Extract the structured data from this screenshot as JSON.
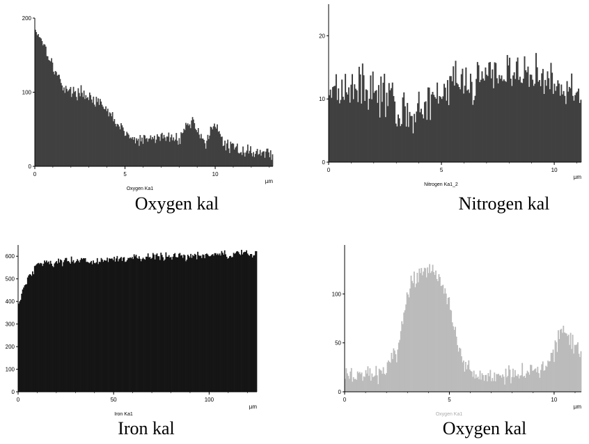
{
  "chart_data": [
    {
      "type": "bar",
      "series_label": "Oxygen Ka1",
      "caption": "Oxygen kal",
      "x_unit": "µm",
      "xlim": [
        0,
        13.2
      ],
      "ylim": [
        0,
        200
      ],
      "x_ticks": [
        0,
        5,
        10
      ],
      "y_ticks": [
        0,
        100,
        200
      ],
      "bar_color": "#404040",
      "label_color": "#000000",
      "profile": [
        [
          0,
          185
        ],
        [
          0.3,
          175
        ],
        [
          0.6,
          160
        ],
        [
          1.0,
          135
        ],
        [
          1.5,
          110
        ],
        [
          2.0,
          100
        ],
        [
          2.5,
          100
        ],
        [
          3.0,
          95
        ],
        [
          3.5,
          85
        ],
        [
          4.0,
          75
        ],
        [
          4.5,
          60
        ],
        [
          5.0,
          45
        ],
        [
          5.5,
          35
        ],
        [
          6.0,
          35
        ],
        [
          6.5,
          38
        ],
        [
          7.0,
          40
        ],
        [
          7.5,
          38
        ],
        [
          8.0,
          38
        ],
        [
          8.5,
          58
        ],
        [
          8.8,
          60
        ],
        [
          9.2,
          42
        ],
        [
          9.5,
          30
        ],
        [
          9.8,
          50
        ],
        [
          10.1,
          52
        ],
        [
          10.5,
          30
        ],
        [
          11.0,
          25
        ],
        [
          11.5,
          22
        ],
        [
          12.0,
          20
        ],
        [
          12.5,
          18
        ],
        [
          13.2,
          18
        ]
      ],
      "noise": 12,
      "bins": 250
    },
    {
      "type": "bar",
      "series_label": "Nitrogen Ka1_2",
      "caption": "Nitrogen kal",
      "x_unit": "µm",
      "xlim": [
        0,
        11.2
      ],
      "ylim": [
        0,
        25
      ],
      "x_ticks": [
        0,
        5,
        10
      ],
      "y_ticks": [
        0,
        10,
        20
      ],
      "bar_color": "#404040",
      "label_color": "#000000",
      "profile": [
        [
          0,
          12
        ],
        [
          1.0,
          12
        ],
        [
          2.0,
          12
        ],
        [
          2.6,
          10
        ],
        [
          3.2,
          8
        ],
        [
          4.0,
          8
        ],
        [
          4.7,
          9
        ],
        [
          5.2,
          12
        ],
        [
          6.0,
          13
        ],
        [
          7.0,
          14
        ],
        [
          8.0,
          14
        ],
        [
          9.0,
          14
        ],
        [
          10.0,
          12
        ],
        [
          11.2,
          11
        ]
      ],
      "noise": 5,
      "bins": 220
    },
    {
      "type": "bar",
      "series_label": "Iron Ka1",
      "caption": "Iron kal",
      "x_unit": "µm",
      "xlim": [
        0,
        125
      ],
      "ylim": [
        0,
        650
      ],
      "x_ticks": [
        0,
        50,
        100
      ],
      "y_ticks": [
        0,
        100,
        200,
        300,
        400,
        500,
        600
      ],
      "bar_color": "#151515",
      "label_color": "#000000",
      "profile": [
        [
          0,
          380
        ],
        [
          2,
          440
        ],
        [
          5,
          500
        ],
        [
          8,
          540
        ],
        [
          10,
          570
        ],
        [
          20,
          575
        ],
        [
          40,
          580
        ],
        [
          60,
          590
        ],
        [
          80,
          600
        ],
        [
          100,
          605
        ],
        [
          125,
          610
        ]
      ],
      "noise": 28,
      "bins": 240
    },
    {
      "type": "bar",
      "series_label": "Oxygen Ka1",
      "caption": "Oxygen kal",
      "x_unit": "µm",
      "xlim": [
        0,
        11.3
      ],
      "ylim": [
        0,
        150
      ],
      "x_ticks": [
        0,
        5,
        10
      ],
      "y_ticks": [
        0,
        50,
        100
      ],
      "bar_color": "#bbbbbb",
      "label_color": "#aaaaaa",
      "profile": [
        [
          0,
          16
        ],
        [
          1.0,
          18
        ],
        [
          1.5,
          18
        ],
        [
          2.0,
          22
        ],
        [
          2.5,
          40
        ],
        [
          2.8,
          75
        ],
        [
          3.0,
          100
        ],
        [
          3.5,
          120
        ],
        [
          4.0,
          125
        ],
        [
          4.5,
          118
        ],
        [
          5.0,
          95
        ],
        [
          5.3,
          60
        ],
        [
          5.6,
          30
        ],
        [
          6.0,
          18
        ],
        [
          7.0,
          17
        ],
        [
          8.0,
          18
        ],
        [
          9.0,
          22
        ],
        [
          9.5,
          25
        ],
        [
          10.0,
          40
        ],
        [
          10.3,
          65
        ],
        [
          10.6,
          60
        ],
        [
          11.0,
          45
        ],
        [
          11.3,
          42
        ]
      ],
      "noise": 14,
      "bins": 230
    }
  ]
}
